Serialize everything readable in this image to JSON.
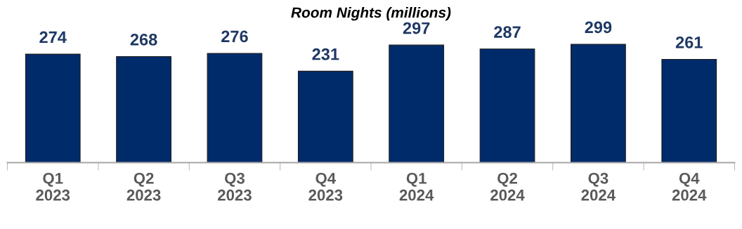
{
  "chart_data": {
    "type": "bar",
    "title": "Room Nights (millions)",
    "categories": [
      "Q1\n2023",
      "Q2\n2023",
      "Q3\n2023",
      "Q4\n2023",
      "Q1\n2024",
      "Q2\n2024",
      "Q3\n2024",
      "Q4\n2024"
    ],
    "values": [
      274,
      268,
      276,
      231,
      297,
      287,
      299,
      261
    ],
    "color": "#002b6b",
    "data_labels": true,
    "grid": false,
    "legend": false,
    "tick_labels": "x"
  }
}
